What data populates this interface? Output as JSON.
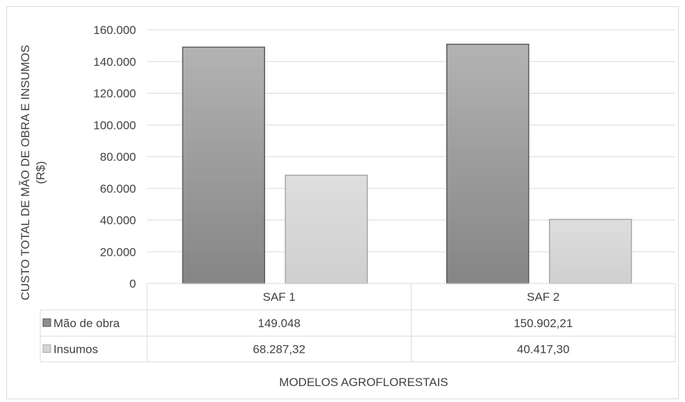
{
  "chart_data": {
    "type": "bar",
    "categories": [
      "SAF 1",
      "SAF 2"
    ],
    "series": [
      {
        "name": "Mão de obra",
        "values": [
          149048,
          150902.21
        ],
        "labels": [
          "149.048",
          "150.902,21"
        ],
        "color": "#8f8f8f"
      },
      {
        "name": "Insumos",
        "values": [
          68287.32,
          40417.3
        ],
        "labels": [
          "68.287,32",
          "40.417,30"
        ],
        "color": "#d4d4d4"
      }
    ],
    "ylim": [
      0,
      160000
    ],
    "yticks": [
      0,
      20000,
      40000,
      60000,
      80000,
      100000,
      120000,
      140000,
      160000
    ],
    "ytick_labels": [
      "0",
      "20.000",
      "40.000",
      "60.000",
      "80.000",
      "100.000",
      "120.000",
      "140.000",
      "160.000"
    ],
    "ylabel_line1": "CUSTO TOTAL DE MÃO DE OBRA E INSUMOS",
    "ylabel_line2": "(R$)",
    "xlabel": "MODELOS AGROFLORESTAIS",
    "grid": true,
    "legend": "data-table"
  }
}
